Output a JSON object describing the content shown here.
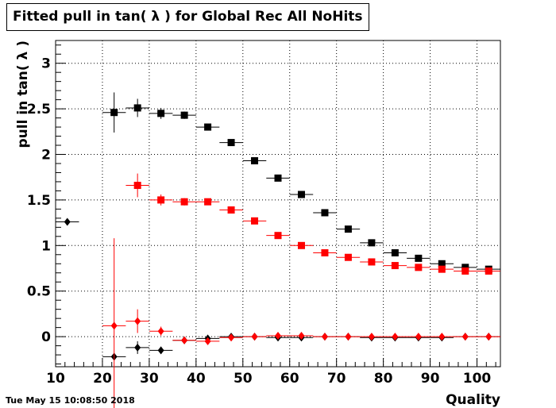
{
  "title": "Fitted pull in tan( λ ) for Global Rec All NoHits",
  "timestamp": "Tue May 15 10:08:50 2018",
  "chart_data": {
    "type": "scatter",
    "title": "Fitted pull in tan( λ ) for Global Rec All NoHits",
    "xlabel": "Quality",
    "ylabel": "pull in tan( λ )",
    "xlim": [
      10,
      105
    ],
    "ylim": [
      -0.33,
      3.25
    ],
    "xticks": [
      10,
      20,
      30,
      40,
      50,
      60,
      70,
      80,
      90,
      100
    ],
    "yticks": [
      0,
      0.5,
      1,
      1.5,
      2,
      2.5,
      3
    ],
    "ytick_labels": [
      "0",
      "0.5",
      "1",
      "1.5",
      "2",
      "2.5",
      "3"
    ],
    "grid": true,
    "series": [
      {
        "color": "#000000",
        "marker": "square",
        "points": [
          {
            "x": 22.5,
            "y": 2.46,
            "xerr": 2.5,
            "yerr": 0.22
          },
          {
            "x": 27.5,
            "y": 2.51,
            "xerr": 2.5,
            "yerr": 0.1
          },
          {
            "x": 32.5,
            "y": 2.45,
            "xerr": 2.5,
            "yerr": 0.06
          },
          {
            "x": 37.5,
            "y": 2.43,
            "xerr": 2.5,
            "yerr": 0.04
          },
          {
            "x": 42.5,
            "y": 2.3,
            "xerr": 2.5,
            "yerr": 0.03
          },
          {
            "x": 47.5,
            "y": 2.13,
            "xerr": 2.5,
            "yerr": 0.02
          },
          {
            "x": 52.5,
            "y": 1.93,
            "xerr": 2.5,
            "yerr": 0.02
          },
          {
            "x": 57.5,
            "y": 1.74,
            "xerr": 2.5,
            "yerr": 0.02
          },
          {
            "x": 62.5,
            "y": 1.56,
            "xerr": 2.5,
            "yerr": 0.02
          },
          {
            "x": 67.5,
            "y": 1.36,
            "xerr": 2.5,
            "yerr": 0.02
          },
          {
            "x": 72.5,
            "y": 1.18,
            "xerr": 2.5,
            "yerr": 0.02
          },
          {
            "x": 77.5,
            "y": 1.03,
            "xerr": 2.5,
            "yerr": 0.02
          },
          {
            "x": 82.5,
            "y": 0.92,
            "xerr": 2.5,
            "yerr": 0.01
          },
          {
            "x": 87.5,
            "y": 0.86,
            "xerr": 2.5,
            "yerr": 0.01
          },
          {
            "x": 92.5,
            "y": 0.8,
            "xerr": 2.5,
            "yerr": 0.01
          },
          {
            "x": 97.5,
            "y": 0.76,
            "xerr": 2.5,
            "yerr": 0.01
          },
          {
            "x": 102.5,
            "y": 0.74,
            "xerr": 2.5,
            "yerr": 0.01
          }
        ]
      },
      {
        "color": "#ff0000",
        "marker": "square",
        "points": [
          {
            "x": 27.5,
            "y": 1.66,
            "xerr": 2.5,
            "yerr": 0.13
          },
          {
            "x": 32.5,
            "y": 1.5,
            "xerr": 2.5,
            "yerr": 0.06
          },
          {
            "x": 37.5,
            "y": 1.48,
            "xerr": 2.5,
            "yerr": 0.04
          },
          {
            "x": 42.5,
            "y": 1.48,
            "xerr": 2.5,
            "yerr": 0.03
          },
          {
            "x": 47.5,
            "y": 1.39,
            "xerr": 2.5,
            "yerr": 0.02
          },
          {
            "x": 52.5,
            "y": 1.27,
            "xerr": 2.5,
            "yerr": 0.02
          },
          {
            "x": 57.5,
            "y": 1.11,
            "xerr": 2.5,
            "yerr": 0.02
          },
          {
            "x": 62.5,
            "y": 1.0,
            "xerr": 2.5,
            "yerr": 0.02
          },
          {
            "x": 67.5,
            "y": 0.92,
            "xerr": 2.5,
            "yerr": 0.02
          },
          {
            "x": 72.5,
            "y": 0.87,
            "xerr": 2.5,
            "yerr": 0.01
          },
          {
            "x": 77.5,
            "y": 0.82,
            "xerr": 2.5,
            "yerr": 0.01
          },
          {
            "x": 82.5,
            "y": 0.78,
            "xerr": 2.5,
            "yerr": 0.01
          },
          {
            "x": 87.5,
            "y": 0.76,
            "xerr": 2.5,
            "yerr": 0.01
          },
          {
            "x": 92.5,
            "y": 0.74,
            "xerr": 2.5,
            "yerr": 0.01
          },
          {
            "x": 97.5,
            "y": 0.72,
            "xerr": 2.5,
            "yerr": 0.01
          },
          {
            "x": 102.5,
            "y": 0.72,
            "xerr": 2.5,
            "yerr": 0.01
          }
        ]
      },
      {
        "color": "#000000",
        "marker": "diamond",
        "points": [
          {
            "x": 12.5,
            "y": 1.26,
            "xerr": 2.5,
            "yerr": 0.0
          },
          {
            "x": 22.5,
            "y": -0.22,
            "xerr": 2.5,
            "yerr": 0.02
          },
          {
            "x": 27.5,
            "y": -0.12,
            "xerr": 2.5,
            "yerr": 0.07
          },
          {
            "x": 32.5,
            "y": -0.15,
            "xerr": 2.5,
            "yerr": 0.04
          },
          {
            "x": 37.5,
            "y": -0.04,
            "xerr": 2.5,
            "yerr": 0.02
          },
          {
            "x": 42.5,
            "y": -0.02,
            "xerr": 2.5,
            "yerr": 0.02
          },
          {
            "x": 47.5,
            "y": 0.0,
            "xerr": 2.5,
            "yerr": 0.01
          },
          {
            "x": 52.5,
            "y": 0.0,
            "xerr": 2.5,
            "yerr": 0.01
          },
          {
            "x": 57.5,
            "y": -0.01,
            "xerr": 2.5,
            "yerr": 0.01
          },
          {
            "x": 62.5,
            "y": -0.01,
            "xerr": 2.5,
            "yerr": 0.01
          },
          {
            "x": 67.5,
            "y": 0.0,
            "xerr": 2.5,
            "yerr": 0.01
          },
          {
            "x": 72.5,
            "y": 0.0,
            "xerr": 2.5,
            "yerr": 0.01
          },
          {
            "x": 77.5,
            "y": -0.01,
            "xerr": 2.5,
            "yerr": 0.01
          },
          {
            "x": 82.5,
            "y": -0.01,
            "xerr": 2.5,
            "yerr": 0.01
          },
          {
            "x": 87.5,
            "y": -0.01,
            "xerr": 2.5,
            "yerr": 0.01
          },
          {
            "x": 92.5,
            "y": -0.01,
            "xerr": 2.5,
            "yerr": 0.01
          },
          {
            "x": 97.5,
            "y": 0.0,
            "xerr": 2.5,
            "yerr": 0.01
          },
          {
            "x": 102.5,
            "y": 0.0,
            "xerr": 2.5,
            "yerr": 0.01
          }
        ]
      },
      {
        "color": "#ff0000",
        "marker": "diamond",
        "points": [
          {
            "x": 22.5,
            "y": 0.12,
            "xerr": 2.5,
            "yerr": 0.96
          },
          {
            "x": 27.5,
            "y": 0.17,
            "xerr": 2.5,
            "yerr": 0.13
          },
          {
            "x": 32.5,
            "y": 0.06,
            "xerr": 2.5,
            "yerr": 0.05
          },
          {
            "x": 37.5,
            "y": -0.04,
            "xerr": 2.5,
            "yerr": 0.02
          },
          {
            "x": 42.5,
            "y": -0.05,
            "xerr": 2.5,
            "yerr": 0.02
          },
          {
            "x": 47.5,
            "y": -0.01,
            "xerr": 2.5,
            "yerr": 0.01
          },
          {
            "x": 52.5,
            "y": 0.0,
            "xerr": 2.5,
            "yerr": 0.01
          },
          {
            "x": 57.5,
            "y": 0.01,
            "xerr": 2.5,
            "yerr": 0.01
          },
          {
            "x": 62.5,
            "y": 0.01,
            "xerr": 2.5,
            "yerr": 0.01
          },
          {
            "x": 67.5,
            "y": 0.0,
            "xerr": 2.5,
            "yerr": 0.01
          },
          {
            "x": 72.5,
            "y": 0.0,
            "xerr": 2.5,
            "yerr": 0.01
          },
          {
            "x": 77.5,
            "y": 0.0,
            "xerr": 2.5,
            "yerr": 0.01
          },
          {
            "x": 82.5,
            "y": 0.0,
            "xerr": 2.5,
            "yerr": 0.01
          },
          {
            "x": 87.5,
            "y": 0.0,
            "xerr": 2.5,
            "yerr": 0.01
          },
          {
            "x": 92.5,
            "y": 0.0,
            "xerr": 2.5,
            "yerr": 0.01
          },
          {
            "x": 97.5,
            "y": 0.0,
            "xerr": 2.5,
            "yerr": 0.01
          },
          {
            "x": 102.5,
            "y": 0.0,
            "xerr": 2.5,
            "yerr": 0.01
          }
        ]
      }
    ]
  }
}
